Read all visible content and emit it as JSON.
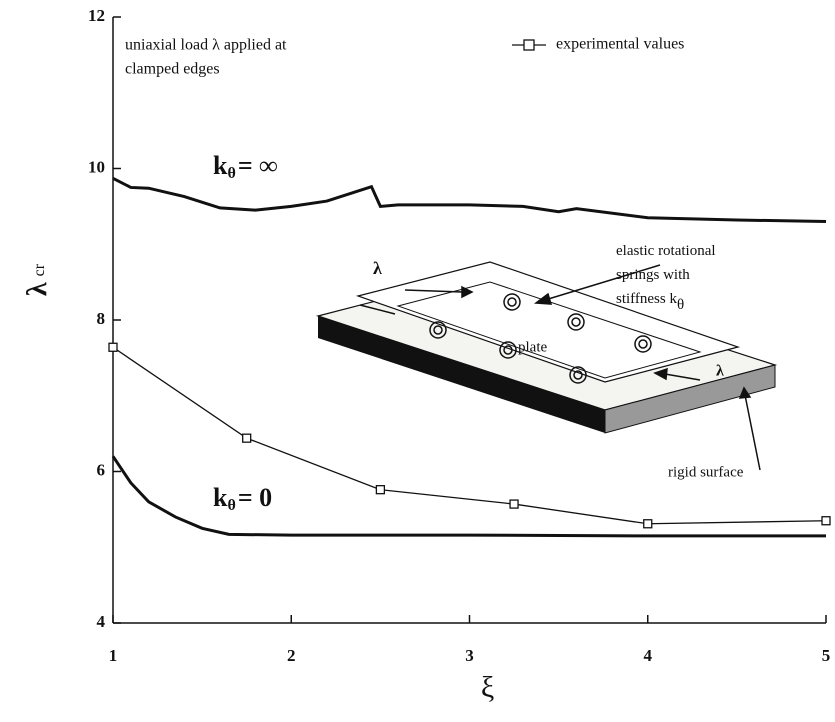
{
  "chart_data": {
    "type": "line",
    "xlabel": "ξ",
    "ylabel": "λ",
    "ylabel_sub": "cr",
    "xlim": [
      1,
      5
    ],
    "ylim": [
      4,
      12
    ],
    "xticks": [
      1,
      2,
      3,
      4,
      5
    ],
    "yticks": [
      4,
      6,
      8,
      10,
      12
    ],
    "legend_position": "upper right",
    "series": [
      {
        "color": "#111111",
        "marker": "none",
        "x": [
          1,
          1.1,
          1.2,
          1.4,
          1.6,
          1.8,
          2.0,
          2.2,
          2.45,
          2.5,
          2.6,
          3.0,
          3.3,
          3.5,
          3.6,
          4.0,
          4.5,
          5.0
        ],
        "values": [
          9.87,
          9.75,
          9.74,
          9.63,
          9.48,
          9.45,
          9.5,
          9.57,
          9.76,
          9.5,
          9.52,
          9.52,
          9.5,
          9.43,
          9.47,
          9.35,
          9.32,
          9.3
        ]
      },
      {
        "color": "#111111",
        "marker": "none",
        "x": [
          1,
          1.1,
          1.2,
          1.35,
          1.5,
          1.65,
          2.0,
          3.0,
          4.0,
          5.0
        ],
        "values": [
          6.2,
          5.85,
          5.6,
          5.4,
          5.25,
          5.17,
          5.16,
          5.16,
          5.15,
          5.15
        ]
      },
      {
        "name": "experimental values",
        "color": "#111111",
        "marker": "square",
        "x": [
          1,
          1.75,
          2.5,
          3.25,
          4,
          5
        ],
        "values": [
          7.64,
          6.44,
          5.76,
          5.57,
          5.31,
          5.35
        ]
      }
    ],
    "curve_labels": [
      {
        "main": "k",
        "sub": "θ",
        "rest": "= ∞"
      },
      {
        "main": "k",
        "sub": "θ",
        "rest": "= 0"
      }
    ],
    "annotations": [
      "uniaxial load λ applied at",
      "clamped edges"
    ],
    "inset": {
      "spring_lines": [
        "elastic rotational",
        "springs with",
        "stiffness k"
      ],
      "spring_sub": "θ",
      "plate": "plate",
      "load_left": "λ",
      "load_right": "λ",
      "surface": "rigid surface"
    }
  }
}
